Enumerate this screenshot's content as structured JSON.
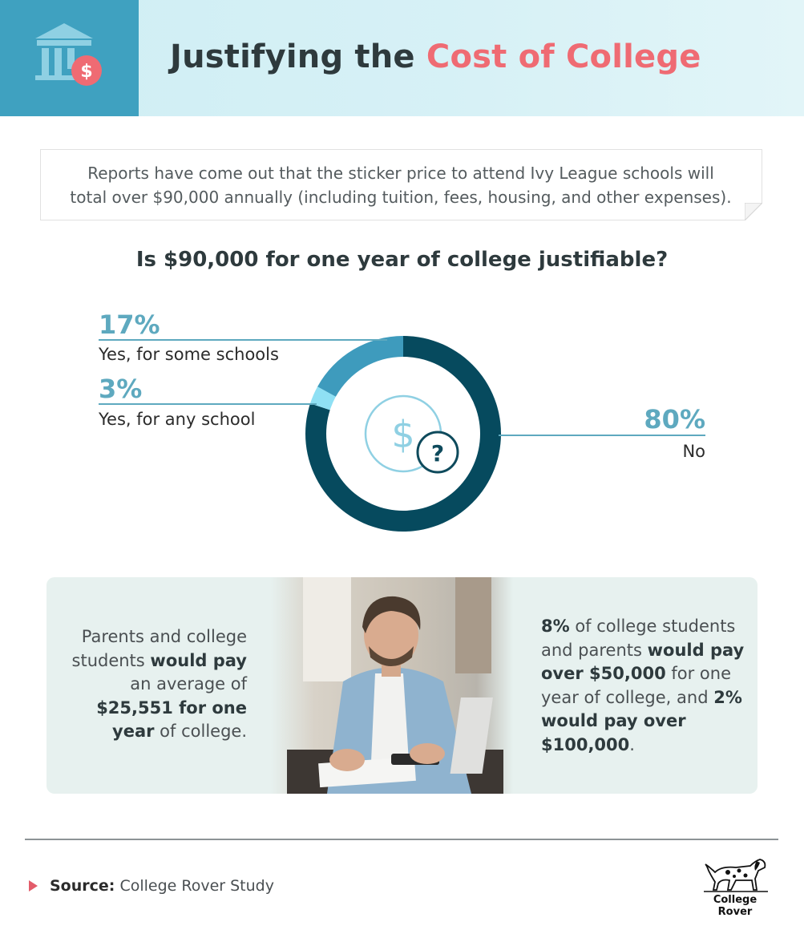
{
  "header": {
    "title_plain": "Justifying the",
    "title_accent": "Cost of College",
    "icon": "bank-dollar-icon",
    "colors": {
      "icon_box": "#3fa1c0",
      "accent": "#ef6b73"
    }
  },
  "intro": {
    "line1": "Reports have come out that the sticker price to attend Ivy League schools will",
    "line2": "total over $90,000 annually (including tuition, fees, housing, and other expenses)."
  },
  "chart_data": {
    "type": "pie",
    "title": "Is $90,000 for one year of college justifiable?",
    "slices": [
      {
        "label": "No",
        "value": 80,
        "display": "80%",
        "color": "#064a5e"
      },
      {
        "label": "Yes, for any school",
        "value": 3,
        "display": "3%",
        "color": "#8fe0f4"
      },
      {
        "label": "Yes, for some schools",
        "value": 17,
        "display": "17%",
        "color": "#3e9bbd"
      }
    ],
    "center_icon": "dollar-question-icon"
  },
  "panel": {
    "left": {
      "p1": "Parents and college",
      "p2": "students ",
      "b1": "would pay",
      "p3": "an average of",
      "b2": "$25,551 for one",
      "b3": "year",
      "p4": " of college."
    },
    "right": {
      "b1": "8%",
      "p1": " of college students",
      "p2": "and parents ",
      "b2": "would pay",
      "b3": "over $50,000",
      "p3": " for one",
      "p4": "year of college, and ",
      "b4": "2%",
      "b5": "would pay over",
      "b6": "$100,000",
      "p5": "."
    },
    "photo": "man-calculating-bills-photo"
  },
  "footer": {
    "source_label": "Source:",
    "source_text": "College Rover Study",
    "brand": "College Rover",
    "brand_icon": "dog-logo-icon"
  }
}
